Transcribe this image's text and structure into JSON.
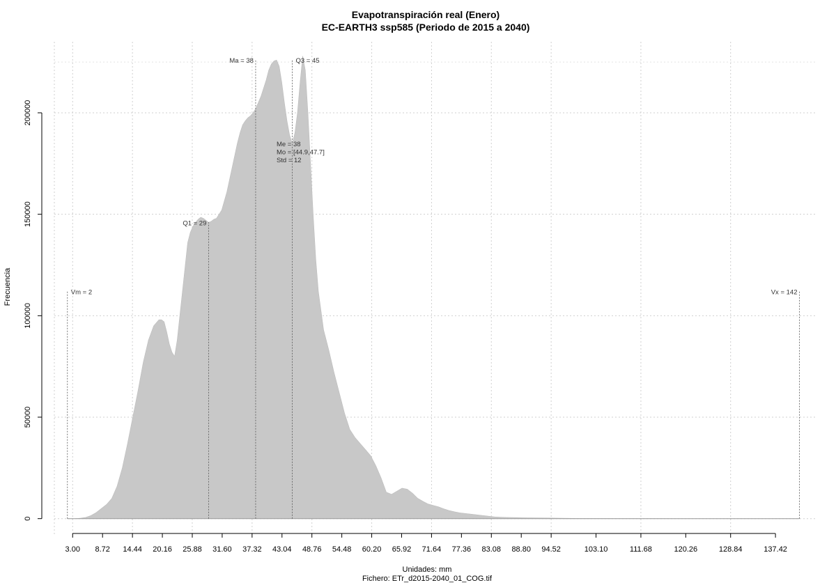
{
  "chart_data": {
    "type": "area",
    "title": "Evapotranspiración real (Enero)",
    "subtitle": "EC-EARTH3 ssp585 (Periodo de 2015 a 2040)",
    "xlabel": "Unidades: mm",
    "ylabel": "Frecuencia",
    "footer": "Fichero: ETr_d2015-2040_01_COG.tif",
    "x_ticks": [
      "3.00",
      "8.72",
      "14.44",
      "20.16",
      "25.88",
      "31.60",
      "37.32",
      "43.04",
      "48.76",
      "54.48",
      "60.20",
      "65.92",
      "71.64",
      "77.36",
      "83.08",
      "88.80",
      "94.52",
      "103.10",
      "111.68",
      "120.26",
      "128.84",
      "137.42"
    ],
    "y_ticks": [
      "0",
      "50000",
      "100000",
      "150000",
      "200000"
    ],
    "xlim": [
      -0.5,
      145
    ],
    "ylim": [
      -8000,
      235000
    ],
    "grid": true,
    "fill_color": "#c8c8c8",
    "x": [
      2.0,
      2.3,
      3.5,
      4.5,
      5.5,
      6.5,
      7.5,
      8.5,
      9.5,
      10.5,
      11.5,
      12.5,
      13.5,
      14.5,
      15.5,
      16.5,
      17.5,
      18.5,
      19.5,
      20.0,
      20.5,
      21.0,
      21.5,
      22.0,
      22.5,
      23.0,
      23.5,
      24.0,
      24.5,
      25.0,
      25.5,
      26.0,
      26.5,
      27.0,
      27.5,
      28.0,
      28.5,
      29.0,
      29.5,
      30.0,
      30.5,
      31.5,
      32.5,
      33.5,
      34.0,
      34.5,
      35.0,
      35.5,
      36.0,
      36.5,
      37.0,
      37.5,
      38.0,
      38.5,
      39.0,
      39.5,
      40.0,
      40.5,
      41.0,
      41.5,
      42.0,
      42.5,
      43.0,
      43.5,
      44.0,
      44.5,
      45.0,
      45.5,
      46.0,
      46.5,
      47.0,
      47.5,
      48.0,
      48.5,
      49.0,
      49.5,
      50.0,
      51.0,
      52.0,
      53.0,
      54.0,
      55.0,
      56.0,
      57.0,
      58.0,
      59.0,
      60.0,
      61.0,
      62.0,
      63.0,
      64.0,
      65.0,
      66.0,
      67.0,
      68.0,
      69.0,
      70.0,
      71.0,
      72.0,
      73.0,
      74.0,
      75.0,
      76.0,
      77.0,
      78.0,
      79.0,
      80.0,
      81.0,
      82.0,
      83.0,
      84.0,
      85.0,
      86.0,
      87.0,
      88.0,
      89.0,
      90.0,
      92.0,
      94.0,
      96.0,
      100.0,
      110.0,
      120.0,
      130.0,
      138.0,
      142.0
    ],
    "y": [
      0,
      0,
      0,
      200,
      600,
      1500,
      3000,
      5000,
      7000,
      10000,
      16000,
      25000,
      37000,
      50000,
      63000,
      77000,
      88000,
      95000,
      98000,
      98000,
      97000,
      92000,
      86000,
      82000,
      80000,
      88000,
      100000,
      112000,
      124000,
      136000,
      141000,
      144000,
      146000,
      147500,
      148500,
      148000,
      147000,
      146000,
      146500,
      147500,
      148000,
      152000,
      161000,
      173000,
      179000,
      185000,
      190000,
      194000,
      196000,
      197500,
      198500,
      200000,
      202000,
      205000,
      208000,
      212000,
      216000,
      221000,
      224000,
      225500,
      226000,
      223000,
      215000,
      205000,
      196000,
      189000,
      185000,
      190000,
      200000,
      215000,
      228000,
      221000,
      200000,
      175000,
      150000,
      128000,
      112000,
      93000,
      83000,
      72000,
      62000,
      52000,
      44000,
      40000,
      37000,
      34000,
      31000,
      26000,
      20000,
      13000,
      12000,
      13500,
      15000,
      14500,
      12500,
      10000,
      8500,
      7200,
      6500,
      5800,
      4800,
      4000,
      3400,
      2900,
      2600,
      2300,
      2000,
      1700,
      1400,
      1100,
      800,
      700,
      600,
      550,
      500,
      450,
      400,
      350,
      300,
      200,
      100,
      50,
      0,
      0,
      0,
      0
    ],
    "reference_lines": [
      {
        "label": "Vm = 2",
        "x": 2
      },
      {
        "label": "Q1 = 29",
        "x": 29
      },
      {
        "label": "Ma = 38",
        "x": 38
      },
      {
        "label": "Q3 = 45",
        "x": 45
      },
      {
        "label": "Vx = 142",
        "x": 142
      }
    ],
    "stats_text": [
      "Me = 38",
      "Mo = [44.9,47.7]",
      "Std = 12"
    ]
  }
}
